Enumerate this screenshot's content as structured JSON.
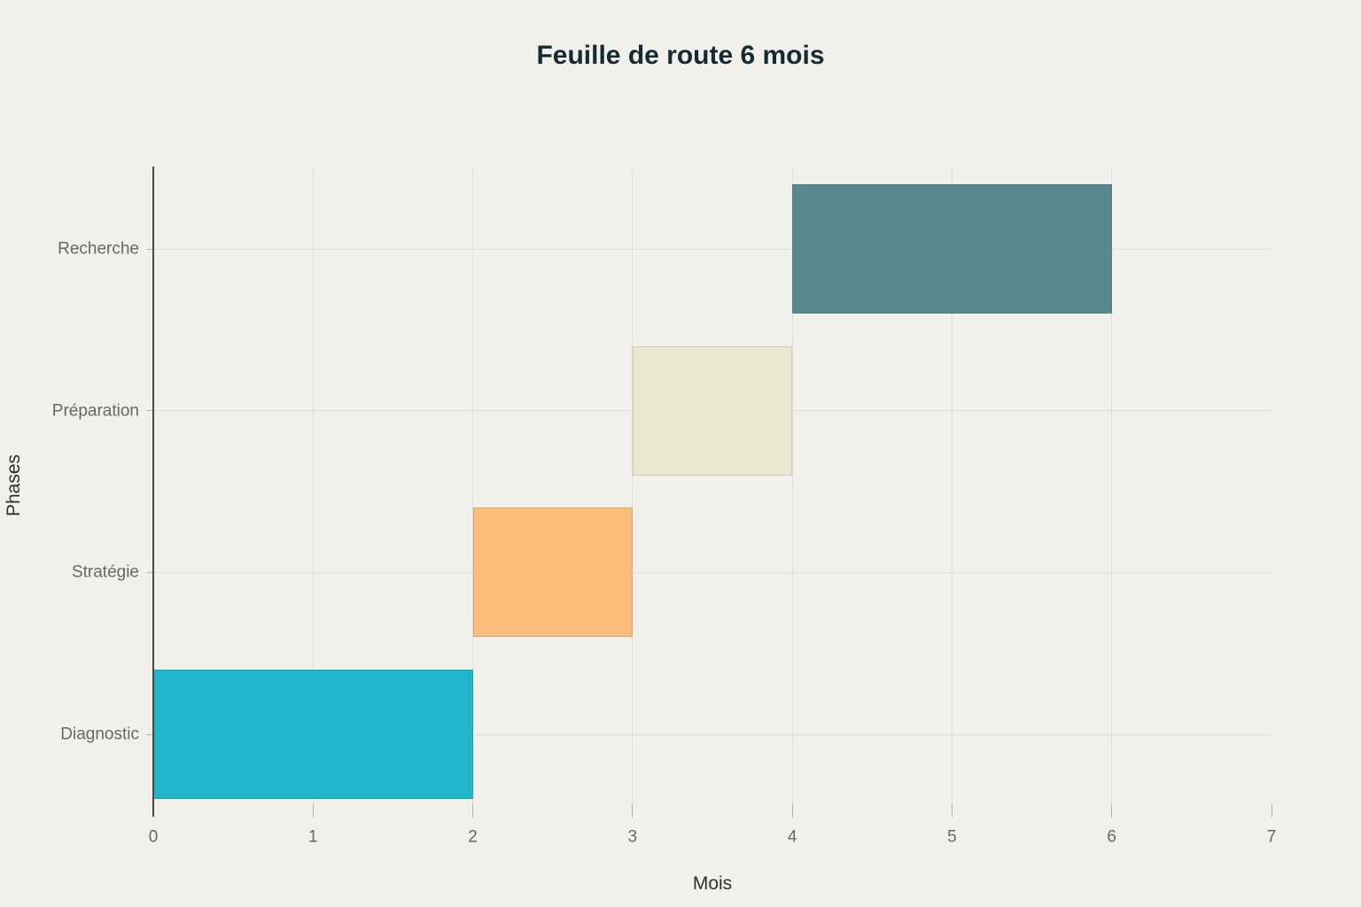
{
  "chart_data": {
    "type": "bar",
    "orientation": "horizontal",
    "title": "Feuille de route 6 mois",
    "xlabel": "Mois",
    "ylabel": "Phases",
    "categories": [
      "Recherche",
      "Préparation",
      "Stratégie",
      "Diagnostic"
    ],
    "bars": [
      {
        "label": "Recherche",
        "start": 4,
        "end": 6,
        "color": "#5a888d"
      },
      {
        "label": "Préparation",
        "start": 3,
        "end": 4,
        "color": "#eae8d1"
      },
      {
        "label": "Stratégie",
        "start": 2,
        "end": 3,
        "color": "#fcbc79"
      },
      {
        "label": "Diagnostic",
        "start": 0,
        "end": 2,
        "color": "#1fb5ca"
      }
    ],
    "xlim": [
      0,
      7
    ],
    "xticks": [
      0,
      1,
      2,
      3,
      4,
      5,
      6,
      7
    ],
    "vgridlines": [
      1,
      2,
      3,
      4,
      5,
      6
    ],
    "grid": true,
    "legend": false
  },
  "colors": {
    "background": "#f1f0ea",
    "title": "#152a33",
    "axis_line": "#46494b",
    "grid": "#deddd6",
    "tick": "#b3b2ac",
    "tick_label": "#66696c",
    "axis_title": "#2e2e2e",
    "bar_border": "rgba(70,70,60,0.18)"
  }
}
